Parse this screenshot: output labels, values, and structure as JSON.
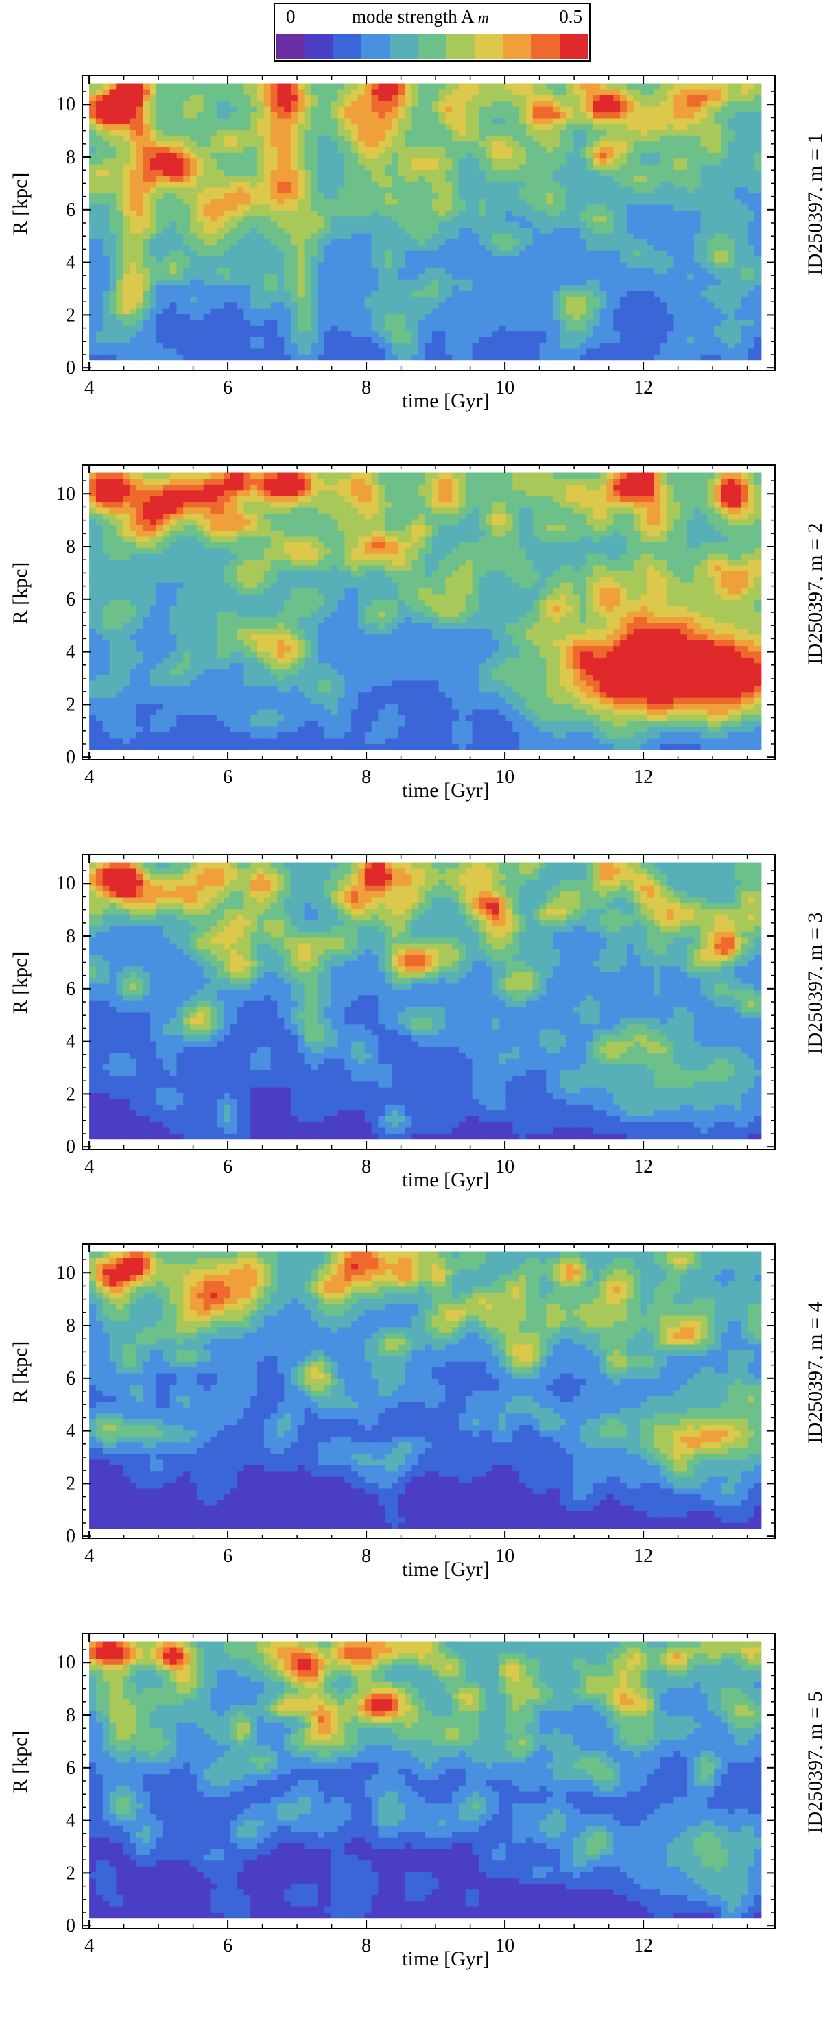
{
  "colorbar": {
    "min_label": "0",
    "title": "mode strength A",
    "title_sub": "m",
    "max_label": "0.5",
    "range": [
      0,
      0.5
    ],
    "colors": [
      "#6a2ea3",
      "#4a3ec6",
      "#3a66d8",
      "#4a90e0",
      "#57b0b8",
      "#6ec08a",
      "#a8c85a",
      "#dcc84a",
      "#f0a03a",
      "#ee6a2c",
      "#e0292a"
    ]
  },
  "chart_data": [
    {
      "type": "heatmap",
      "galaxy": "ID250397",
      "mode": "m = 1",
      "side_label": "ID250397,  m = 1",
      "xlabel": "time [Gyr]",
      "ylabel": "R [kpc]",
      "xlim": [
        3.9,
        13.9
      ],
      "ylim": [
        -0.1,
        11.1
      ],
      "x_ticks": [
        "4",
        "6",
        "8",
        "10",
        "12"
      ],
      "y_ticks": [
        "0",
        "2",
        "4",
        "6",
        "8",
        "10"
      ],
      "x_range": [
        4,
        13.7
      ],
      "y_range": [
        0.3,
        10.8
      ],
      "base_level": 0.1,
      "radial_gradient": 0.012,
      "features": [
        {
          "t": 4.3,
          "R": 9.8,
          "st": 0.25,
          "sR": 0.5,
          "a": 0.35
        },
        {
          "t": 5.1,
          "R": 7.8,
          "st": 0.3,
          "sR": 0.6,
          "a": 0.28
        },
        {
          "t": 4.6,
          "R": 4.5,
          "st": 0.2,
          "sR": 2.5,
          "a": 0.14
        },
        {
          "t": 6.8,
          "R": 8.0,
          "st": 0.25,
          "sR": 2.5,
          "a": 0.18
        },
        {
          "t": 7.1,
          "R": 3.0,
          "st": 0.15,
          "sR": 2.0,
          "a": 0.12
        },
        {
          "t": 8.2,
          "R": 9.5,
          "st": 0.3,
          "sR": 1.0,
          "a": 0.16
        },
        {
          "t": 5.8,
          "R": 6.0,
          "st": 0.4,
          "sR": 1.5,
          "a": 0.12
        }
      ]
    },
    {
      "type": "heatmap",
      "galaxy": "ID250397",
      "mode": "m = 2",
      "side_label": "ID250397,   m = 2",
      "xlabel": "time [Gyr]",
      "ylabel": "R [kpc]",
      "xlim": [
        3.9,
        13.9
      ],
      "ylim": [
        -0.1,
        11.1
      ],
      "x_ticks": [
        "4",
        "6",
        "8",
        "10",
        "12"
      ],
      "y_ticks": [
        "0",
        "2",
        "4",
        "6",
        "8",
        "10"
      ],
      "x_range": [
        4,
        13.7
      ],
      "y_range": [
        0.3,
        10.8
      ],
      "base_level": 0.1,
      "radial_gradient": 0.012,
      "features": [
        {
          "t": 13.0,
          "R": 3.0,
          "st": 1.0,
          "sR": 1.0,
          "a": 0.4
        },
        {
          "t": 11.5,
          "R": 3.0,
          "st": 0.7,
          "sR": 1.3,
          "a": 0.2
        },
        {
          "t": 12.8,
          "R": 5.5,
          "st": 1.2,
          "sR": 1.5,
          "a": 0.12
        },
        {
          "t": 6.8,
          "R": 10.3,
          "st": 0.3,
          "sR": 0.5,
          "a": 0.3
        },
        {
          "t": 4.3,
          "R": 10.3,
          "st": 0.3,
          "sR": 0.5,
          "a": 0.25
        },
        {
          "t": 5.2,
          "R": 9.8,
          "st": 0.4,
          "sR": 0.6,
          "a": 0.2
        },
        {
          "t": 6.8,
          "R": 4.0,
          "st": 0.2,
          "sR": 0.8,
          "a": 0.15
        }
      ]
    },
    {
      "type": "heatmap",
      "galaxy": "ID250397",
      "mode": "m = 3",
      "side_label": "ID250397,  m = 3",
      "xlabel": "time [Gyr]",
      "ylabel": "R [kpc]",
      "xlim": [
        3.9,
        13.9
      ],
      "ylim": [
        -0.1,
        11.1
      ],
      "x_ticks": [
        "4",
        "6",
        "8",
        "10",
        "12"
      ],
      "y_ticks": [
        "0",
        "2",
        "4",
        "6",
        "8",
        "10"
      ],
      "x_range": [
        4,
        13.7
      ],
      "y_range": [
        0.3,
        10.8
      ],
      "base_level": 0.06,
      "radial_gradient": 0.013,
      "features": [
        {
          "t": 4.3,
          "R": 10.2,
          "st": 0.25,
          "sR": 0.5,
          "a": 0.3
        },
        {
          "t": 5.8,
          "R": 10.3,
          "st": 0.3,
          "sR": 0.5,
          "a": 0.2
        },
        {
          "t": 12.5,
          "R": 2.5,
          "st": 1.1,
          "sR": 1.2,
          "a": 0.14
        },
        {
          "t": 8.5,
          "R": 10.3,
          "st": 0.4,
          "sR": 0.5,
          "a": 0.18
        }
      ]
    },
    {
      "type": "heatmap",
      "galaxy": "ID250397",
      "mode": "m = 4",
      "side_label": "ID250397,  m = 4",
      "xlabel": "time [Gyr]",
      "ylabel": "R [kpc]",
      "xlim": [
        3.9,
        13.9
      ],
      "ylim": [
        -0.1,
        11.1
      ],
      "x_ticks": [
        "4",
        "6",
        "8",
        "10",
        "12"
      ],
      "y_ticks": [
        "0",
        "2",
        "4",
        "6",
        "8",
        "10"
      ],
      "x_range": [
        4,
        13.7
      ],
      "y_range": [
        0.3,
        10.8
      ],
      "base_level": 0.04,
      "radial_gradient": 0.014,
      "features": [
        {
          "t": 13.0,
          "R": 3.8,
          "st": 1.2,
          "sR": 1.3,
          "a": 0.16
        },
        {
          "t": 5.8,
          "R": 9.5,
          "st": 0.5,
          "sR": 0.8,
          "a": 0.2
        },
        {
          "t": 8.0,
          "R": 10.5,
          "st": 0.3,
          "sR": 0.5,
          "a": 0.2
        },
        {
          "t": 4.5,
          "R": 10.2,
          "st": 0.4,
          "sR": 0.5,
          "a": 0.14
        }
      ]
    },
    {
      "type": "heatmap",
      "galaxy": "ID250397",
      "mode": "m = 5",
      "side_label": "ID250397,  m = 5",
      "xlabel": "time [Gyr]",
      "ylabel": "R [kpc]",
      "xlim": [
        3.9,
        13.9
      ],
      "ylim": [
        -0.1,
        11.1
      ],
      "x_ticks": [
        "4",
        "6",
        "8",
        "10",
        "12"
      ],
      "y_ticks": [
        "0",
        "2",
        "4",
        "6",
        "8",
        "10"
      ],
      "x_range": [
        4,
        13.7
      ],
      "y_range": [
        0.3,
        10.8
      ],
      "base_level": 0.04,
      "radial_gradient": 0.014,
      "features": [
        {
          "t": 4.3,
          "R": 10.4,
          "st": 0.3,
          "sR": 0.4,
          "a": 0.35
        },
        {
          "t": 5.2,
          "R": 10.3,
          "st": 0.2,
          "sR": 0.4,
          "a": 0.3
        },
        {
          "t": 7.0,
          "R": 10.0,
          "st": 0.3,
          "sR": 0.5,
          "a": 0.22
        },
        {
          "t": 8.3,
          "R": 10.5,
          "st": 0.3,
          "sR": 0.4,
          "a": 0.18
        },
        {
          "t": 12.8,
          "R": 2.5,
          "st": 1.0,
          "sR": 1.2,
          "a": 0.12
        }
      ]
    }
  ]
}
